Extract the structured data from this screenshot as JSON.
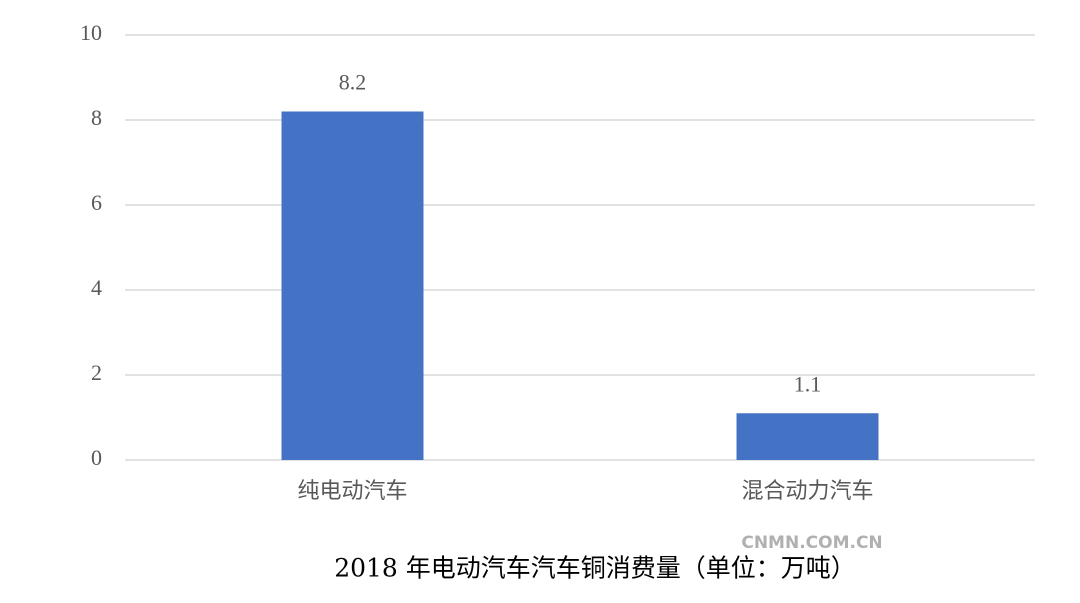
{
  "chart_data": {
    "type": "bar",
    "title": "2018 年电动汽车汽车铜消费量（单位：万吨）",
    "categories": [
      "纯电动汽车",
      "混合动力汽车"
    ],
    "values": [
      8.2,
      1.1
    ],
    "color": "#4472c4",
    "ylim": [
      0,
      10
    ],
    "yticks": [
      0,
      2,
      4,
      6,
      8,
      10
    ],
    "grid": true,
    "watermark": "CNMN.COM.CN"
  }
}
